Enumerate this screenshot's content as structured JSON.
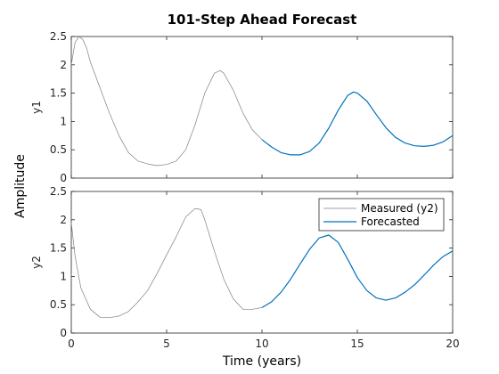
{
  "chart_data": {
    "type": "line",
    "title": "101-Step Ahead Forecast",
    "shared_ylabel": "Amplitude",
    "xlabel": "Time (years)",
    "xlim": [
      0,
      20
    ],
    "xticks": [
      0,
      5,
      10,
      15,
      20
    ],
    "grid": false,
    "subplots": [
      {
        "ylabel": "y1",
        "ylim": [
          0,
          2.5
        ],
        "yticks": [
          0,
          0.5,
          1,
          1.5,
          2,
          2.5
        ],
        "series": [
          {
            "role": "measured",
            "color": "#808080",
            "x": [
              0,
              0.2,
              0.4,
              0.6,
              0.8,
              1,
              1.5,
              2,
              2.5,
              3,
              3.5,
              4,
              4.5,
              5,
              5.5,
              6,
              6.5,
              7,
              7.5,
              7.8,
              8,
              8.5,
              9,
              9.5,
              10
            ],
            "y": [
              2.0,
              2.4,
              2.5,
              2.45,
              2.3,
              2.05,
              1.6,
              1.15,
              0.75,
              0.45,
              0.3,
              0.25,
              0.22,
              0.24,
              0.3,
              0.5,
              0.95,
              1.5,
              1.85,
              1.9,
              1.85,
              1.55,
              1.15,
              0.85,
              0.68
            ]
          },
          {
            "role": "forecast",
            "color": "#0072BD",
            "x": [
              10,
              10.5,
              11,
              11.5,
              12,
              12.5,
              13,
              13.5,
              14,
              14.5,
              14.8,
              15,
              15.5,
              16,
              16.5,
              17,
              17.5,
              18,
              18.5,
              19,
              19.5,
              20
            ],
            "y": [
              0.68,
              0.55,
              0.45,
              0.41,
              0.41,
              0.47,
              0.62,
              0.88,
              1.2,
              1.46,
              1.52,
              1.5,
              1.36,
              1.12,
              0.89,
              0.72,
              0.62,
              0.57,
              0.56,
              0.58,
              0.64,
              0.75
            ]
          }
        ]
      },
      {
        "ylabel": "y2",
        "ylim": [
          0,
          2.5
        ],
        "yticks": [
          0,
          0.5,
          1,
          1.5,
          2,
          2.5
        ],
        "legend": {
          "placement": "top-right",
          "entries": [
            {
              "label": "Measured (y2)",
              "color": "#808080"
            },
            {
              "label": "Forecasted",
              "color": "#0072BD"
            }
          ]
        },
        "series": [
          {
            "role": "measured",
            "color": "#808080",
            "name": "Measured (y2)",
            "x": [
              0,
              0.2,
              0.5,
              1,
              1.5,
              2,
              2.5,
              3,
              3.5,
              4,
              4.5,
              5,
              5.5,
              6,
              6.5,
              6.8,
              7,
              7.5,
              8,
              8.5,
              9,
              9.5,
              10
            ],
            "y": [
              1.95,
              1.35,
              0.8,
              0.42,
              0.28,
              0.27,
              0.3,
              0.38,
              0.55,
              0.75,
              1.05,
              1.38,
              1.7,
              2.05,
              2.2,
              2.18,
              2.0,
              1.45,
              0.95,
              0.6,
              0.42,
              0.42,
              0.45
            ]
          },
          {
            "role": "forecast",
            "color": "#0072BD",
            "name": "Forecasted",
            "x": [
              10,
              10.5,
              11,
              11.5,
              12,
              12.5,
              13,
              13.5,
              14,
              14.5,
              15,
              15.5,
              16,
              16.5,
              17,
              17.5,
              18,
              18.5,
              19,
              19.5,
              20
            ],
            "y": [
              0.45,
              0.55,
              0.72,
              0.95,
              1.22,
              1.48,
              1.68,
              1.73,
              1.6,
              1.3,
              0.98,
              0.75,
              0.62,
              0.58,
              0.62,
              0.72,
              0.85,
              1.02,
              1.2,
              1.35,
              1.45
            ]
          }
        ]
      }
    ]
  }
}
